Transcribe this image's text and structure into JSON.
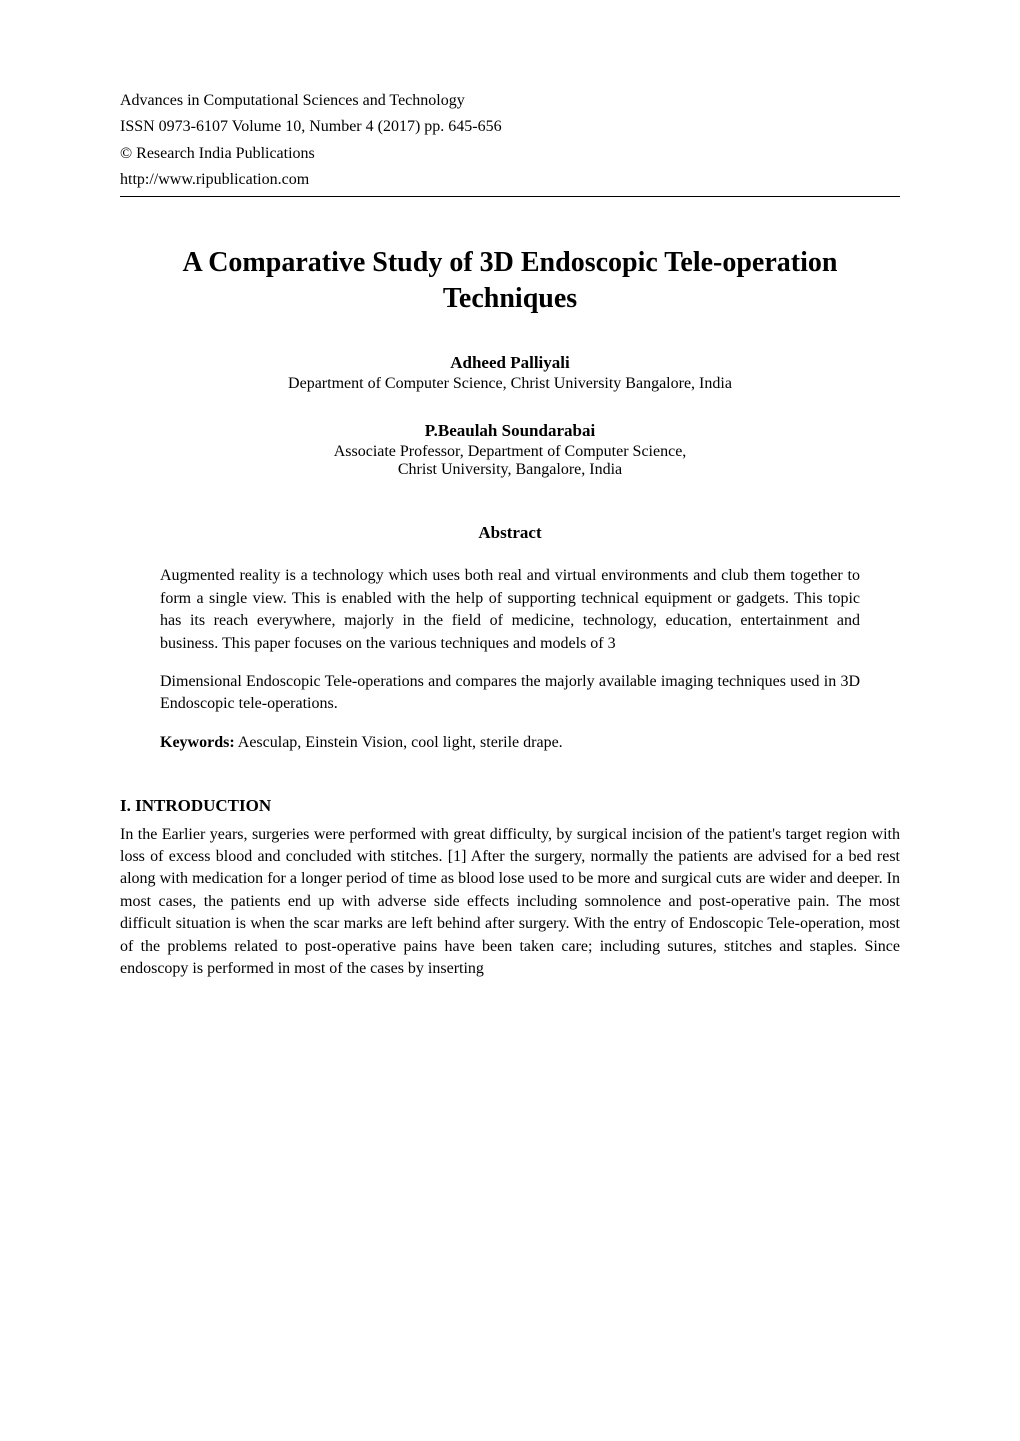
{
  "header": {
    "journal": "Advances in Computational Sciences and Technology",
    "issn_line": "ISSN 0973-6107 Volume 10, Number 4 (2017) pp. 645-656",
    "publisher": "© Research India Publications",
    "url": "http://www.ripublication.com"
  },
  "title": "A Comparative Study of 3D Endoscopic Tele-operation Techniques",
  "authors": [
    {
      "name": "Adheed Palliyali",
      "affiliation": "Department of Computer Science, Christ University Bangalore, India"
    },
    {
      "name": "P.Beaulah Soundarabai",
      "affiliation_line1": "Associate Professor, Department of Computer Science,",
      "affiliation_line2": "Christ University, Bangalore, India"
    }
  ],
  "abstract": {
    "heading": "Abstract",
    "paragraphs": [
      "Augmented reality is a technology which uses both real and virtual environments and club them together to form a single view. This is enabled with the help of supporting technical equipment or gadgets. This topic has its reach everywhere, majorly in the field of medicine, technology, education, entertainment and business. This paper focuses on the various techniques and models of 3",
      "Dimensional Endoscopic Tele-operations and compares the majorly available imaging techniques used in 3D Endoscopic tele-operations."
    ]
  },
  "keywords": {
    "label": "Keywords:",
    "text": " Aesculap, Einstein Vision, cool light, sterile drape."
  },
  "section": {
    "heading": "I. INTRODUCTION",
    "paragraph": "In the Earlier years, surgeries were performed with great difficulty, by surgical incision of the patient's target region with loss of excess blood and concluded with stitches. [1] After the surgery, normally the patients are advised for a bed rest along with medication for a longer period of time as blood lose used to be more and surgical cuts are wider and deeper. In most cases, the patients end up with adverse side effects including somnolence and post-operative pain. The most difficult situation is when the scar marks are left behind after surgery. With the entry of Endoscopic Tele-operation, most of the problems related to post-operative pains have been taken care; including sutures, stitches and staples. Since endoscopy is performed in most of the cases by inserting"
  }
}
